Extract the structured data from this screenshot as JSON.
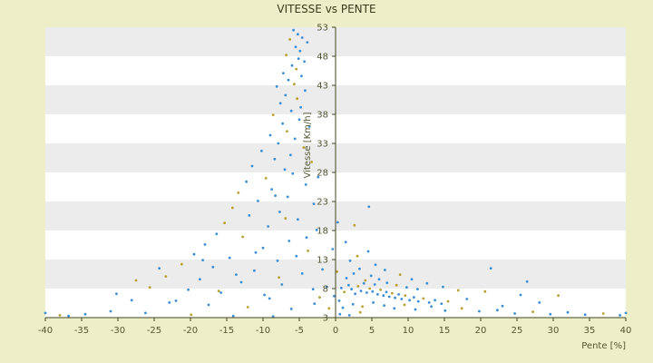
{
  "chart_data": {
    "type": "scatter",
    "title": "VITESSE vs PENTE",
    "xlabel": "Pente [%]",
    "ylabel": "Vitesse [Km/h]",
    "xlim": [
      -40,
      40
    ],
    "ylim": [
      3,
      53
    ],
    "xticks": [
      -40,
      -35,
      -30,
      -25,
      -20,
      -15,
      -10,
      -5,
      0,
      5,
      10,
      15,
      20,
      25,
      30,
      35,
      40
    ],
    "yticks": [
      3,
      8,
      13,
      18,
      23,
      28,
      33,
      38,
      43,
      48,
      53
    ],
    "grid": "horizontal alternating bands",
    "legend": "none",
    "colors": {
      "series_primary": "#3a8fd6",
      "series_secondary": "#b8a030",
      "axis": "#444422",
      "band_light": "#ffffff",
      "band_dark": "#ececec",
      "page_bg": "#ecefc7"
    },
    "series": [
      {
        "points": [
          [
            -5.8,
            52.5
          ],
          [
            -5.2,
            51.8
          ],
          [
            -4.6,
            51.2
          ],
          [
            -6.3,
            50.9
          ],
          [
            -3.9,
            50.4
          ],
          [
            -5.5,
            49.6
          ],
          [
            -4.9,
            48.9
          ],
          [
            -6.8,
            48.2
          ],
          [
            -5.1,
            47.6
          ],
          [
            -4.3,
            47.1
          ],
          [
            -6.0,
            46.4
          ],
          [
            -5.4,
            45.8
          ],
          [
            -7.2,
            45.1
          ],
          [
            -4.7,
            44.6
          ],
          [
            -6.5,
            43.9
          ],
          [
            -5.7,
            43.2
          ],
          [
            -8.1,
            42.8
          ],
          [
            -4.2,
            42.1
          ],
          [
            -6.9,
            41.3
          ],
          [
            -5.3,
            40.7
          ],
          [
            -7.6,
            39.9
          ],
          [
            -4.8,
            39.2
          ],
          [
            -6.1,
            38.6
          ],
          [
            -8.6,
            37.9
          ],
          [
            -5.0,
            37.1
          ],
          [
            -7.3,
            36.4
          ],
          [
            -3.6,
            35.9
          ],
          [
            -6.7,
            35.1
          ],
          [
            -9.0,
            34.4
          ],
          [
            -5.6,
            33.8
          ],
          [
            -7.9,
            33.0
          ],
          [
            -4.4,
            32.3
          ],
          [
            -10.2,
            31.7
          ],
          [
            -6.2,
            31.0
          ],
          [
            -8.4,
            30.3
          ],
          [
            -3.3,
            29.8
          ],
          [
            -11.5,
            29.1
          ],
          [
            -7.0,
            28.5
          ],
          [
            -5.9,
            27.8
          ],
          [
            -9.6,
            27.0
          ],
          [
            -12.3,
            26.4
          ],
          [
            -4.1,
            25.9
          ],
          [
            -8.8,
            25.1
          ],
          [
            -13.4,
            24.5
          ],
          [
            -6.6,
            23.8
          ],
          [
            -10.7,
            23.1
          ],
          [
            -3.0,
            22.6
          ],
          [
            -14.2,
            21.9
          ],
          [
            -7.7,
            21.2
          ],
          [
            -11.9,
            20.6
          ],
          [
            -5.2,
            19.9
          ],
          [
            -15.3,
            19.3
          ],
          [
            -9.3,
            18.7
          ],
          [
            -2.6,
            18.1
          ],
          [
            -16.4,
            17.4
          ],
          [
            -12.8,
            16.9
          ],
          [
            -6.4,
            16.2
          ],
          [
            -18.0,
            15.6
          ],
          [
            -10.0,
            15.0
          ],
          [
            -3.8,
            14.5
          ],
          [
            -19.5,
            13.9
          ],
          [
            -14.6,
            13.3
          ],
          [
            -8.0,
            12.8
          ],
          [
            -21.2,
            12.2
          ],
          [
            -16.9,
            11.7
          ],
          [
            -11.2,
            11.1
          ],
          [
            -4.6,
            10.6
          ],
          [
            -23.4,
            10.1
          ],
          [
            -18.7,
            9.6
          ],
          [
            -13.0,
            9.1
          ],
          [
            -7.4,
            8.7
          ],
          [
            -25.6,
            8.2
          ],
          [
            -20.3,
            7.8
          ],
          [
            -15.8,
            7.3
          ],
          [
            -9.8,
            6.9
          ],
          [
            -2.2,
            6.5
          ],
          [
            -28.1,
            6.0
          ],
          [
            -22.9,
            5.6
          ],
          [
            -17.5,
            5.2
          ],
          [
            -12.1,
            4.8
          ],
          [
            -6.1,
            4.5
          ],
          [
            -31.0,
            4.1
          ],
          [
            -26.2,
            3.8
          ],
          [
            -19.9,
            3.5
          ],
          [
            -14.1,
            3.3
          ],
          [
            -8.6,
            3.2
          ],
          [
            -34.5,
            3.6
          ],
          [
            -38.0,
            3.4
          ],
          [
            -40.0,
            3.8
          ],
          [
            -36.8,
            3.3
          ],
          [
            -30.2,
            7.1
          ],
          [
            -27.5,
            9.4
          ],
          [
            -24.3,
            11.5
          ],
          [
            -22.0,
            5.9
          ],
          [
            -18.3,
            12.9
          ],
          [
            -16.1,
            7.6
          ],
          [
            -13.7,
            10.4
          ],
          [
            -11.0,
            14.2
          ],
          [
            -9.1,
            6.3
          ],
          [
            -7.8,
            9.9
          ],
          [
            -5.4,
            13.6
          ],
          [
            -3.1,
            7.9
          ],
          [
            -1.8,
            11.3
          ],
          [
            -0.9,
            4.6
          ],
          [
            -1.2,
            8.3
          ],
          [
            -2.9,
            5.4
          ],
          [
            -4.0,
            16.8
          ],
          [
            -6.9,
            20.1
          ],
          [
            -8.3,
            24.0
          ],
          [
            -2.4,
            27.2
          ],
          [
            0.8,
            8.1
          ],
          [
            1.2,
            7.4
          ],
          [
            1.8,
            8.6
          ],
          [
            2.2,
            7.9
          ],
          [
            2.7,
            7.1
          ],
          [
            3.1,
            8.4
          ],
          [
            3.5,
            7.6
          ],
          [
            3.9,
            8.9
          ],
          [
            4.3,
            7.3
          ],
          [
            4.7,
            8.0
          ],
          [
            5.1,
            7.5
          ],
          [
            5.4,
            8.7
          ],
          [
            5.8,
            7.0
          ],
          [
            6.2,
            7.8
          ],
          [
            6.6,
            6.8
          ],
          [
            7.0,
            7.4
          ],
          [
            7.4,
            6.6
          ],
          [
            7.8,
            7.2
          ],
          [
            8.2,
            6.4
          ],
          [
            8.7,
            7.0
          ],
          [
            9.1,
            6.2
          ],
          [
            9.6,
            6.8
          ],
          [
            10.2,
            6.0
          ],
          [
            10.8,
            6.5
          ],
          [
            11.4,
            5.8
          ],
          [
            12.1,
            6.3
          ],
          [
            12.9,
            5.6
          ],
          [
            13.7,
            6.0
          ],
          [
            14.6,
            5.4
          ],
          [
            15.5,
            5.8
          ],
          [
            1.5,
            9.8
          ],
          [
            2.5,
            10.6
          ],
          [
            3.3,
            11.4
          ],
          [
            4.1,
            9.4
          ],
          [
            4.9,
            10.2
          ],
          [
            6.0,
            9.6
          ],
          [
            7.1,
            9.0
          ],
          [
            8.4,
            8.6
          ],
          [
            9.8,
            8.2
          ],
          [
            11.3,
            7.9
          ],
          [
            2.0,
            12.8
          ],
          [
            3.0,
            13.6
          ],
          [
            4.5,
            14.4
          ],
          [
            5.5,
            12.1
          ],
          [
            6.8,
            11.2
          ],
          [
            8.9,
            10.4
          ],
          [
            10.5,
            9.6
          ],
          [
            12.6,
            8.9
          ],
          [
            14.8,
            8.3
          ],
          [
            16.9,
            7.7
          ],
          [
            0.5,
            5.9
          ],
          [
            1.0,
            4.7
          ],
          [
            2.4,
            5.3
          ],
          [
            3.7,
            4.9
          ],
          [
            5.2,
            5.6
          ],
          [
            6.7,
            5.1
          ],
          [
            8.1,
            4.6
          ],
          [
            9.5,
            5.2
          ],
          [
            11.0,
            4.4
          ],
          [
            13.2,
            4.9
          ],
          [
            15.1,
            4.2
          ],
          [
            17.4,
            4.6
          ],
          [
            19.8,
            4.1
          ],
          [
            22.3,
            4.3
          ],
          [
            24.7,
            3.7
          ],
          [
            27.2,
            4.0
          ],
          [
            29.6,
            3.6
          ],
          [
            32.0,
            3.9
          ],
          [
            34.4,
            3.5
          ],
          [
            36.9,
            3.7
          ],
          [
            39.2,
            3.4
          ],
          [
            40.0,
            3.8
          ],
          [
            18.1,
            6.2
          ],
          [
            20.6,
            7.5
          ],
          [
            23.0,
            5.0
          ],
          [
            25.5,
            6.9
          ],
          [
            28.1,
            5.6
          ],
          [
            30.7,
            6.8
          ],
          [
            26.4,
            9.2
          ],
          [
            21.4,
            11.5
          ],
          [
            4.6,
            22.1
          ],
          [
            2.6,
            18.9
          ],
          [
            1.4,
            16.0
          ],
          [
            0.3,
            19.4
          ],
          [
            -0.4,
            14.8
          ],
          [
            0.2,
            10.9
          ],
          [
            0.6,
            3.6
          ],
          [
            -0.2,
            6.7
          ],
          [
            1.9,
            3.4
          ],
          [
            3.4,
            3.9
          ]
        ]
      }
    ]
  }
}
